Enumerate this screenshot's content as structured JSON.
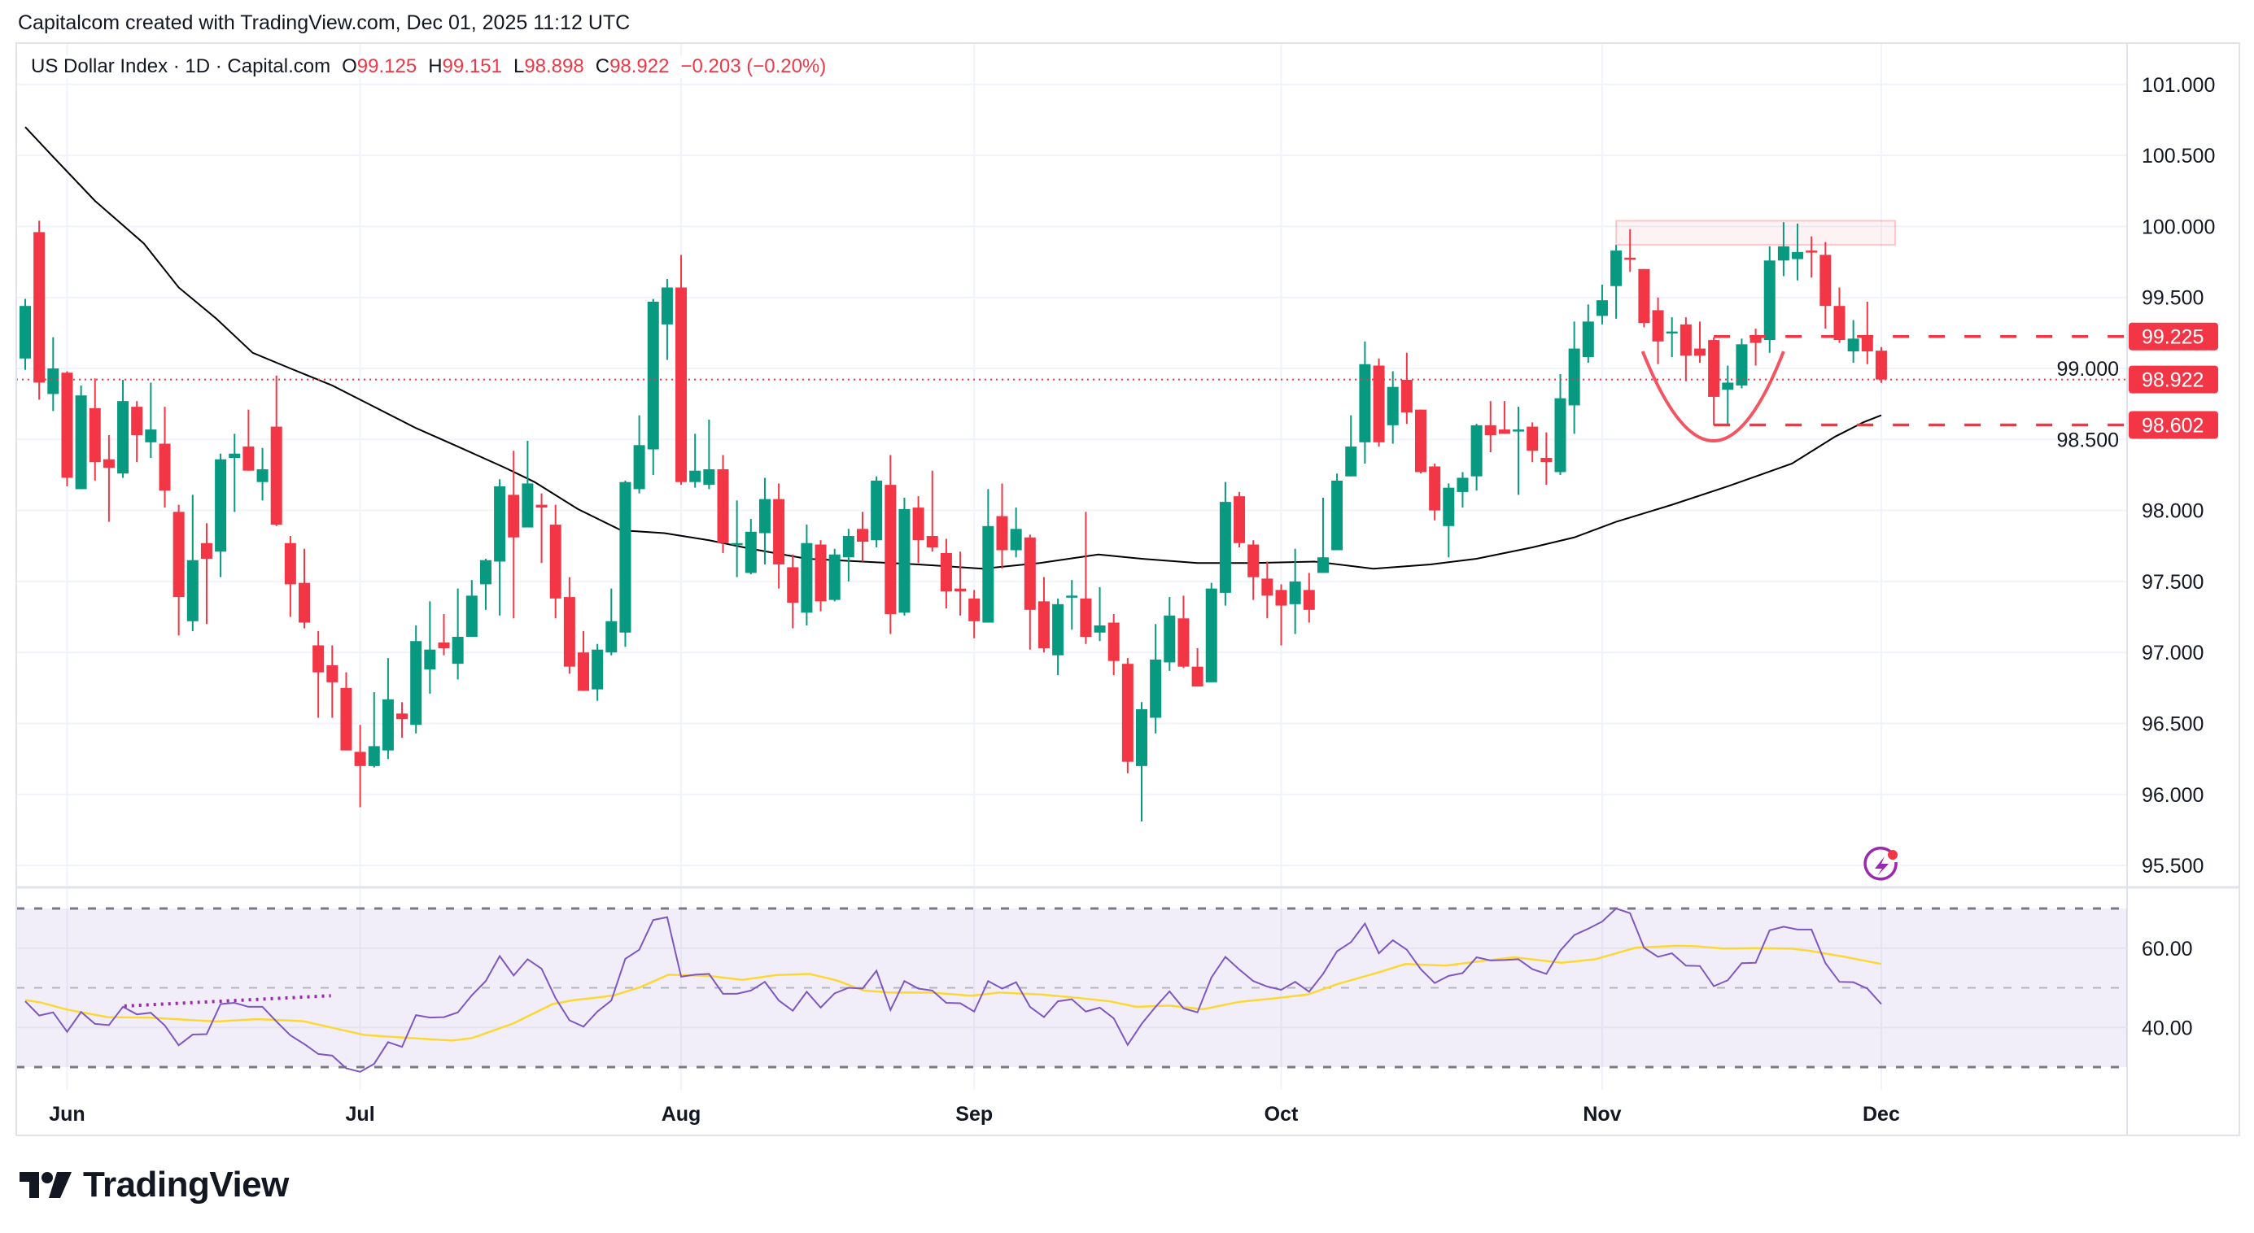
{
  "header": {
    "credit": "Capitalcom created with TradingView.com, Dec 01, 2025 11:12 UTC"
  },
  "legend": {
    "symbol": "US Dollar Index · 1D · Capital.com",
    "open_label": "O",
    "open": "99.125",
    "high_label": "H",
    "high": "99.151",
    "low_label": "L",
    "low": "98.898",
    "close_label": "C",
    "close": "98.922",
    "change": "−0.203 (−0.20%)"
  },
  "footer": {
    "logo_text": "TradingView"
  },
  "colors": {
    "up": "#089981",
    "down": "#f23645",
    "sma": "#000000",
    "rsi": "#7e57c2",
    "rsi_ma": "#fdd835",
    "rsi_band": "#7e57c2",
    "annotation": "#f23645",
    "trendline": "#9c27b0",
    "alert_icon": "#9c27b0"
  },
  "icons": {
    "alert": "lightning-alert-icon",
    "logo": "tradingview-logo-icon"
  },
  "chart_data": {
    "type": "candlestick",
    "title": "",
    "price_axis": {
      "ylim": [
        95.3,
        101.2
      ],
      "ticks": [
        "101.000",
        "100.500",
        "100.000",
        "99.500",
        "99.000",
        "98.500",
        "98.000",
        "97.500",
        "97.000",
        "96.500",
        "96.000",
        "95.500"
      ],
      "tick_values": [
        101.0,
        100.5,
        100.0,
        99.5,
        99.0,
        98.5,
        98.0,
        97.5,
        97.0,
        96.5,
        96.0,
        95.5
      ]
    },
    "x_ticks": [
      {
        "label": "Jun",
        "bar": 3
      },
      {
        "label": "Jul",
        "bar": 24
      },
      {
        "label": "Aug",
        "bar": 47
      },
      {
        "label": "Sep",
        "bar": 68
      },
      {
        "label": "Oct",
        "bar": 90
      },
      {
        "label": "Nov",
        "bar": 113
      },
      {
        "label": "Dec",
        "bar": 133
      }
    ],
    "ohlc_fields": [
      "open",
      "high",
      "low",
      "close"
    ],
    "candles": [
      [
        99.07,
        99.49,
        98.99,
        99.44
      ],
      [
        99.96,
        100.04,
        98.78,
        98.9
      ],
      [
        98.82,
        99.22,
        98.7,
        99.0
      ],
      [
        98.97,
        98.98,
        98.17,
        98.23
      ],
      [
        98.15,
        98.88,
        98.15,
        98.81
      ],
      [
        98.72,
        98.93,
        98.21,
        98.34
      ],
      [
        98.36,
        98.53,
        97.92,
        98.3
      ],
      [
        98.26,
        98.92,
        98.23,
        98.77
      ],
      [
        98.73,
        98.77,
        98.34,
        98.53
      ],
      [
        98.48,
        98.9,
        98.37,
        98.57
      ],
      [
        98.47,
        98.73,
        98.02,
        98.14
      ],
      [
        97.99,
        98.04,
        97.12,
        97.39
      ],
      [
        97.22,
        98.11,
        97.15,
        97.65
      ],
      [
        97.77,
        97.91,
        97.2,
        97.66
      ],
      [
        97.71,
        98.4,
        97.53,
        98.36
      ],
      [
        98.37,
        98.54,
        97.99,
        98.4
      ],
      [
        98.45,
        98.71,
        98.28,
        98.28
      ],
      [
        98.2,
        98.44,
        98.07,
        98.29
      ],
      [
        98.59,
        98.95,
        97.89,
        97.9
      ],
      [
        97.77,
        97.82,
        97.25,
        97.48
      ],
      [
        97.49,
        97.73,
        97.17,
        97.21
      ],
      [
        97.05,
        97.15,
        96.54,
        96.86
      ],
      [
        96.91,
        97.05,
        96.54,
        96.79
      ],
      [
        96.75,
        96.86,
        96.31,
        96.31
      ],
      [
        96.3,
        96.49,
        95.91,
        96.2
      ],
      [
        96.2,
        96.72,
        96.19,
        96.34
      ],
      [
        96.31,
        96.96,
        96.25,
        96.67
      ],
      [
        96.57,
        96.65,
        96.4,
        96.53
      ],
      [
        96.49,
        97.19,
        96.43,
        97.08
      ],
      [
        96.88,
        97.36,
        96.71,
        97.02
      ],
      [
        97.07,
        97.27,
        96.98,
        97.03
      ],
      [
        96.92,
        97.45,
        96.81,
        97.11
      ],
      [
        97.11,
        97.51,
        97.11,
        97.4
      ],
      [
        97.48,
        97.66,
        97.3,
        97.65
      ],
      [
        97.64,
        98.22,
        97.26,
        98.17
      ],
      [
        98.11,
        98.42,
        97.24,
        97.81
      ],
      [
        97.88,
        98.49,
        97.88,
        98.19
      ],
      [
        98.04,
        98.12,
        97.63,
        98.02
      ],
      [
        97.9,
        98.04,
        97.24,
        97.38
      ],
      [
        97.39,
        97.53,
        96.85,
        96.9
      ],
      [
        97.0,
        97.15,
        96.73,
        96.73
      ],
      [
        96.74,
        97.06,
        96.66,
        97.02
      ],
      [
        97.0,
        97.45,
        96.98,
        97.22
      ],
      [
        97.14,
        98.21,
        97.04,
        98.2
      ],
      [
        98.15,
        98.67,
        98.12,
        98.46
      ],
      [
        98.43,
        99.49,
        98.25,
        99.47
      ],
      [
        99.31,
        99.63,
        99.06,
        99.57
      ],
      [
        99.57,
        99.8,
        98.18,
        98.2
      ],
      [
        98.2,
        98.54,
        98.16,
        98.28
      ],
      [
        98.18,
        98.64,
        98.15,
        98.29
      ],
      [
        98.29,
        98.39,
        97.7,
        97.77
      ],
      [
        97.76,
        98.07,
        97.53,
        97.77
      ],
      [
        97.56,
        97.94,
        97.55,
        97.85
      ],
      [
        97.84,
        98.23,
        97.62,
        98.08
      ],
      [
        98.08,
        98.19,
        97.45,
        97.62
      ],
      [
        97.6,
        97.69,
        97.17,
        97.35
      ],
      [
        97.28,
        97.9,
        97.19,
        97.77
      ],
      [
        97.76,
        97.79,
        97.29,
        97.36
      ],
      [
        97.37,
        97.73,
        97.36,
        97.69
      ],
      [
        97.67,
        97.87,
        97.5,
        97.82
      ],
      [
        97.87,
        97.99,
        97.64,
        97.78
      ],
      [
        97.79,
        98.24,
        97.74,
        98.21
      ],
      [
        98.18,
        98.39,
        97.13,
        97.27
      ],
      [
        97.28,
        98.09,
        97.26,
        98.01
      ],
      [
        98.02,
        98.1,
        97.63,
        97.79
      ],
      [
        97.82,
        98.28,
        97.71,
        97.74
      ],
      [
        97.7,
        97.8,
        97.31,
        97.43
      ],
      [
        97.45,
        97.71,
        97.26,
        97.43
      ],
      [
        97.38,
        97.44,
        97.1,
        97.22
      ],
      [
        97.21,
        98.15,
        97.21,
        97.89
      ],
      [
        97.96,
        98.19,
        97.59,
        97.72
      ],
      [
        97.72,
        98.02,
        97.67,
        97.87
      ],
      [
        97.81,
        97.83,
        97.02,
        97.3
      ],
      [
        97.36,
        97.53,
        97.0,
        97.03
      ],
      [
        96.98,
        97.38,
        96.84,
        97.34
      ],
      [
        97.39,
        97.51,
        97.16,
        97.4
      ],
      [
        97.38,
        97.99,
        97.06,
        97.11
      ],
      [
        97.14,
        97.46,
        97.08,
        97.19
      ],
      [
        97.21,
        97.27,
        96.84,
        96.94
      ],
      [
        96.92,
        96.96,
        96.15,
        96.23
      ],
      [
        96.2,
        96.65,
        95.81,
        96.6
      ],
      [
        96.54,
        97.2,
        96.43,
        96.95
      ],
      [
        96.93,
        97.39,
        96.87,
        97.26
      ],
      [
        97.24,
        97.4,
        96.89,
        96.9
      ],
      [
        96.9,
        97.03,
        96.76,
        96.76
      ],
      [
        96.79,
        97.49,
        96.79,
        97.45
      ],
      [
        97.42,
        98.2,
        97.33,
        98.06
      ],
      [
        98.1,
        98.13,
        97.74,
        97.77
      ],
      [
        97.76,
        97.79,
        97.37,
        97.53
      ],
      [
        97.52,
        97.64,
        97.24,
        97.4
      ],
      [
        97.44,
        97.48,
        97.05,
        97.33
      ],
      [
        97.34,
        97.73,
        97.13,
        97.5
      ],
      [
        97.44,
        97.56,
        97.21,
        97.3
      ],
      [
        97.56,
        98.09,
        97.56,
        97.67
      ],
      [
        97.72,
        98.26,
        97.72,
        98.21
      ],
      [
        98.24,
        98.67,
        98.24,
        98.45
      ],
      [
        98.48,
        99.19,
        98.33,
        99.03
      ],
      [
        99.02,
        99.07,
        98.45,
        98.48
      ],
      [
        98.6,
        98.98,
        98.47,
        98.87
      ],
      [
        98.92,
        99.11,
        98.61,
        98.69
      ],
      [
        98.71,
        98.71,
        98.26,
        98.27
      ],
      [
        98.31,
        98.33,
        97.93,
        98.0
      ],
      [
        97.89,
        98.19,
        97.67,
        98.16
      ],
      [
        98.13,
        98.27,
        98.02,
        98.23
      ],
      [
        98.24,
        98.61,
        98.14,
        98.6
      ],
      [
        98.6,
        98.77,
        98.41,
        98.53
      ],
      [
        98.57,
        98.77,
        98.54,
        98.54
      ],
      [
        98.56,
        98.73,
        98.11,
        98.57
      ],
      [
        98.59,
        98.62,
        98.34,
        98.42
      ],
      [
        98.37,
        98.55,
        98.18,
        98.34
      ],
      [
        98.27,
        98.96,
        98.25,
        98.79
      ],
      [
        98.74,
        99.33,
        98.54,
        99.14
      ],
      [
        99.08,
        99.45,
        99.04,
        99.33
      ],
      [
        99.37,
        99.59,
        99.31,
        99.48
      ],
      [
        99.58,
        99.87,
        99.35,
        99.83
      ],
      [
        99.78,
        99.98,
        99.68,
        99.77
      ],
      [
        99.7,
        99.7,
        99.29,
        99.32
      ],
      [
        99.41,
        99.5,
        99.03,
        99.19
      ],
      [
        99.25,
        99.36,
        99.08,
        99.26
      ],
      [
        99.31,
        99.36,
        98.91,
        99.09
      ],
      [
        99.14,
        99.33,
        99.04,
        99.09
      ],
      [
        99.2,
        99.22,
        98.6,
        98.8
      ],
      [
        98.85,
        99.02,
        98.6,
        98.9
      ],
      [
        98.88,
        99.21,
        98.86,
        99.17
      ],
      [
        99.22,
        99.28,
        99.02,
        99.18
      ],
      [
        99.2,
        99.86,
        99.11,
        99.76
      ],
      [
        99.76,
        100.03,
        99.65,
        99.86
      ],
      [
        99.77,
        100.02,
        99.62,
        99.82
      ],
      [
        99.83,
        99.93,
        99.64,
        99.82
      ],
      [
        99.8,
        99.89,
        99.28,
        99.44
      ],
      [
        99.44,
        99.57,
        99.18,
        99.2
      ],
      [
        99.12,
        99.34,
        99.04,
        99.21
      ],
      [
        99.23,
        99.47,
        99.03,
        99.12
      ],
      [
        99.125,
        99.151,
        98.898,
        98.922
      ]
    ],
    "sma_points": [
      [
        0,
        100.7
      ],
      [
        2,
        100.49
      ],
      [
        5,
        100.18
      ],
      [
        8.5,
        99.88
      ],
      [
        11,
        99.57
      ],
      [
        13.7,
        99.35
      ],
      [
        16.3,
        99.11
      ],
      [
        19,
        99.0
      ],
      [
        22,
        98.88
      ],
      [
        25,
        98.73
      ],
      [
        28,
        98.58
      ],
      [
        31,
        98.45
      ],
      [
        34.4,
        98.3
      ],
      [
        36.5,
        98.2
      ],
      [
        39.6,
        98.01
      ],
      [
        42.7,
        97.86
      ],
      [
        45.8,
        97.84
      ],
      [
        49,
        97.79
      ],
      [
        52,
        97.73
      ],
      [
        56,
        97.66
      ],
      [
        60,
        97.64
      ],
      [
        64,
        97.62
      ],
      [
        68.6,
        97.59
      ],
      [
        72.7,
        97.63
      ],
      [
        76.9,
        97.69
      ],
      [
        80,
        97.66
      ],
      [
        84,
        97.63
      ],
      [
        88,
        97.63
      ],
      [
        92.4,
        97.64
      ],
      [
        96.6,
        97.59
      ],
      [
        100.7,
        97.62
      ],
      [
        104,
        97.66
      ],
      [
        108,
        97.74
      ],
      [
        111,
        97.81
      ],
      [
        114,
        97.92
      ],
      [
        118,
        98.04
      ],
      [
        122,
        98.17
      ],
      [
        126.6,
        98.33
      ],
      [
        129.7,
        98.52
      ],
      [
        131.7,
        98.62
      ],
      [
        133,
        98.67
      ]
    ],
    "last_price": {
      "value": 98.922,
      "label": "98.922"
    },
    "drawings": {
      "levels": [
        {
          "value": 99.225,
          "label": "99.225",
          "from_bar": 121
        },
        {
          "value": 98.602,
          "label": "98.602",
          "from_bar": 121
        }
      ],
      "resistance_zone": {
        "from_bar": 114,
        "to_bar": 134,
        "low": 99.87,
        "high": 100.04
      },
      "rounded_bottom": {
        "from_bar": 115.9,
        "to_bar": 126,
        "bottom_bar": 121,
        "edge_value": 99.12,
        "bottom_value": 98.49
      }
    },
    "rsi": {
      "ylim": [
        30,
        70
      ],
      "bands": [
        70,
        50,
        30
      ],
      "ticks": [
        "60.00",
        "40.00"
      ],
      "tick_values": [
        60,
        40
      ],
      "values": [
        46.6,
        43.0,
        43.8,
        38.9,
        43.9,
        40.9,
        40.6,
        45.2,
        43.3,
        43.7,
        40.5,
        35.5,
        38.2,
        38.3,
        45.9,
        46.2,
        45.2,
        45.2,
        41.5,
        38.0,
        35.8,
        33.3,
        32.9,
        29.7,
        28.8,
        30.8,
        36.3,
        35.1,
        43.1,
        42.5,
        42.6,
        43.8,
        48.1,
        51.7,
        58.0,
        53.1,
        57.2,
        54.8,
        47.4,
        41.8,
        40.2,
        44.0,
        46.8,
        57.3,
        59.6,
        67.1,
        67.8,
        52.8,
        53.3,
        53.5,
        48.5,
        48.5,
        49.3,
        51.5,
        46.8,
        44.2,
        49.0,
        45.0,
        48.6,
        50.0,
        49.8,
        54.3,
        44.4,
        51.7,
        49.8,
        49.3,
        46.2,
        46.1,
        44.0,
        51.7,
        49.8,
        51.4,
        45.2,
        42.6,
        46.6,
        47.1,
        44.0,
        45.0,
        42.3,
        35.6,
        40.9,
        45.2,
        49.1,
        44.8,
        43.8,
        52.6,
        57.8,
        54.6,
        51.7,
        50.3,
        49.5,
        51.5,
        49.0,
        53.5,
        59.2,
        61.5,
        66.2,
        58.7,
        62.0,
        59.6,
        54.7,
        51.2,
        53.0,
        53.7,
        57.7,
        56.9,
        57.0,
        57.2,
        54.7,
        53.5,
        59.4,
        63.3,
        64.9,
        66.7,
        70.0,
        68.8,
        60.1,
        57.8,
        58.7,
        55.6,
        55.5,
        50.4,
        51.9,
        56.2,
        56.3,
        64.5,
        65.4,
        64.7,
        64.7,
        56.2,
        51.5,
        51.4,
        49.8,
        45.9
      ],
      "ma_points": [
        [
          0,
          46.9
        ],
        [
          1.1,
          46.3
        ],
        [
          3,
          44.5
        ],
        [
          5.9,
          42.6
        ],
        [
          8.8,
          42.5
        ],
        [
          11.2,
          42.0
        ],
        [
          13.7,
          41.5
        ],
        [
          16.6,
          42.1
        ],
        [
          19.9,
          41.6
        ],
        [
          22.4,
          39.6
        ],
        [
          24.3,
          38.1
        ],
        [
          27.2,
          37.4
        ],
        [
          30.6,
          36.7
        ],
        [
          32,
          37.3
        ],
        [
          34.9,
          40.9
        ],
        [
          37.8,
          45.9
        ],
        [
          39.3,
          46.9
        ],
        [
          40.7,
          47.4
        ],
        [
          42.2,
          48.1
        ],
        [
          44.1,
          50.2
        ],
        [
          46.1,
          53.3
        ],
        [
          49,
          53.0
        ],
        [
          51.4,
          52.0
        ],
        [
          53.8,
          53.2
        ],
        [
          56.2,
          53.5
        ],
        [
          58.1,
          51.9
        ],
        [
          60.1,
          49.3
        ],
        [
          62,
          48.8
        ],
        [
          64.9,
          48.8
        ],
        [
          67.8,
          48.0
        ],
        [
          69.8,
          48.8
        ],
        [
          72.8,
          48.3
        ],
        [
          75.3,
          47.5
        ],
        [
          77.7,
          46.6
        ],
        [
          79.6,
          45.2
        ],
        [
          82,
          45.5
        ],
        [
          84.4,
          44.6
        ],
        [
          86.9,
          46.4
        ],
        [
          89.7,
          47.4
        ],
        [
          91.9,
          48.3
        ],
        [
          94.1,
          51.0
        ],
        [
          97,
          53.9
        ],
        [
          98.9,
          56.0
        ],
        [
          101.8,
          55.6
        ],
        [
          103.8,
          56.5
        ],
        [
          106.7,
          57.7
        ],
        [
          110.1,
          56.3
        ],
        [
          112.5,
          57.2
        ],
        [
          115.4,
          60.1
        ],
        [
          118.3,
          60.6
        ],
        [
          119.7,
          60.5
        ],
        [
          121.7,
          59.9
        ],
        [
          124.1,
          60.0
        ],
        [
          126.5,
          59.9
        ],
        [
          127.9,
          59.3
        ],
        [
          130.4,
          57.8
        ],
        [
          133,
          56.0
        ]
      ],
      "trendline": {
        "from_bar": 7.1,
        "from_value": 45.4,
        "to_bar": 21.9,
        "to_value": 48.0
      }
    }
  }
}
